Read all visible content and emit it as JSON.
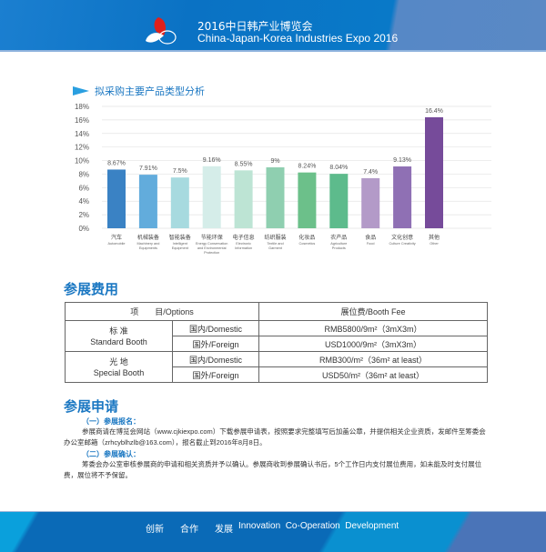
{
  "header": {
    "title_cn": "2016中日韩产业博览会",
    "title_en": "China-Japan-Korea Industries Expo 2016"
  },
  "chart_section": {
    "title": "拟采购主要产品类型分析"
  },
  "chart_data": {
    "type": "bar",
    "title": "拟采购主要产品类型分析",
    "ylim": [
      0,
      18
    ],
    "yticks": [
      "0%",
      "2%",
      "4%",
      "6%",
      "8%",
      "10%",
      "12%",
      "14%",
      "16%",
      "18%"
    ],
    "grid": true,
    "categories": [
      {
        "cn": "汽车",
        "en": [
          "Automobile"
        ]
      },
      {
        "cn": "机械装备",
        "en": [
          "Machinery and",
          "Equipments"
        ]
      },
      {
        "cn": "智能装备",
        "en": [
          "Intelligent",
          "Equipment"
        ]
      },
      {
        "cn": "节能环保",
        "en": [
          "Energy Conservation",
          "and Environmental",
          "Protection"
        ]
      },
      {
        "cn": "电子信息",
        "en": [
          "Electronic",
          "Information"
        ]
      },
      {
        "cn": "纺织服装",
        "en": [
          "Textile and",
          "Garment"
        ]
      },
      {
        "cn": "化妆品",
        "en": [
          "Cosmetics"
        ]
      },
      {
        "cn": "农产品",
        "en": [
          "Agriculture",
          "Products"
        ]
      },
      {
        "cn": "食品",
        "en": [
          "Food"
        ]
      },
      {
        "cn": "文化创意",
        "en": [
          "Culture Creativity"
        ]
      },
      {
        "cn": "其他",
        "en": [
          "Other"
        ]
      }
    ],
    "values": [
      8.67,
      7.91,
      7.5,
      9.16,
      8.55,
      9,
      8.24,
      8.04,
      7.4,
      9.13,
      16.4
    ],
    "labels": [
      "8.67%",
      "7.91%",
      "7.5%",
      "9.16%",
      "8.55%",
      "9%",
      "8.24%",
      "8.04%",
      "7.4%",
      "9.13%",
      "16.4%"
    ],
    "colors": [
      "#3a82c4",
      "#62acdc",
      "#a7dadf",
      "#d5ede9",
      "#bde4d4",
      "#8fcfb0",
      "#6cc08a",
      "#5dbb8c",
      "#b39ac8",
      "#8f70b4",
      "#764b9a"
    ]
  },
  "fees": {
    "title": "参展费用",
    "head": [
      "项　　目/Options",
      "展位费/Booth Fee"
    ],
    "groups": [
      {
        "name_cn": "标 准",
        "name_en": "Standard Booth",
        "rows": [
          {
            "type": "国内/Domestic",
            "fee": "RMB5800/9m²（3mX3m）"
          },
          {
            "type": "国外/Foreign",
            "fee": "USD1000/9m²（3mX3m）"
          }
        ]
      },
      {
        "name_cn": "光 地",
        "name_en": "Special Booth",
        "rows": [
          {
            "type": "国内/Domestic",
            "fee": "RMB300/m²（36m² at least）"
          },
          {
            "type": "国外/Foreign",
            "fee": "USD50/m²（36m² at least）"
          }
        ]
      }
    ]
  },
  "apply": {
    "title": "参展申请",
    "s1_title": "（一）参展报名：",
    "s1_text": "参展商请在博览会网站（www.cjkiexpo.com）下载参展申请表，按照要求完整填写后加盖公章，并提供相关企业资质，发邮件至筹委会办公室邮箱（zrhcyblhzlb@163.com），报名截止到2016年8月8日。",
    "s2_title": "（二）参展确认：",
    "s2_text": "筹委会办公室审核参展商的申请和相关资质并予以确认。参展商收到参展确认书后，5个工作日内支付展位费用，如未能及时支付展位费，展位将不予保留。"
  },
  "footer": {
    "m1": "创新",
    "m2": "合作",
    "m3": "发展",
    "en": "Innovation  Co-Operation  Development"
  }
}
